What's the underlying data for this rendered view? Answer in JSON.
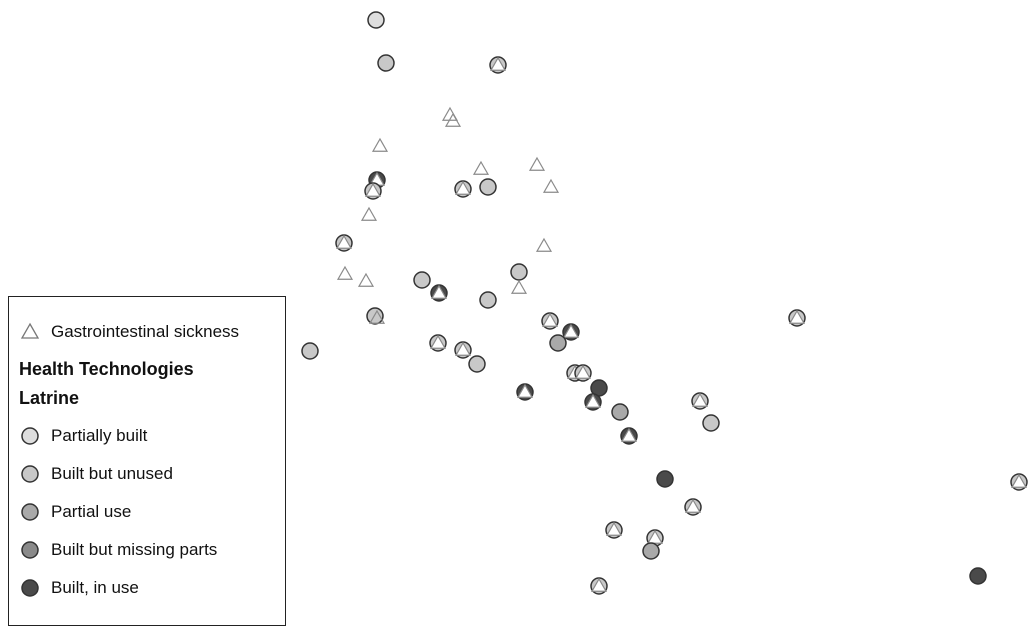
{
  "legend": {
    "sickness_label": "Gastrointestinal sickness",
    "heading_1": "Health Technologies",
    "heading_2": "Latrine",
    "categories": [
      {
        "key": "partially_built",
        "label": "Partially built",
        "fill": "#dedede"
      },
      {
        "key": "built_unused",
        "label": "Built but unused",
        "fill": "#c8c8c8"
      },
      {
        "key": "partial_use",
        "label": "Partial use",
        "fill": "#a9a9a9"
      },
      {
        "key": "missing_parts",
        "label": "Built but missing parts",
        "fill": "#8a8a8a"
      },
      {
        "key": "in_use",
        "label": "Built, in use",
        "fill": "#4a4a4a"
      }
    ],
    "triangle_color": "#8a8a8a"
  },
  "map_points": [
    {
      "latrine": "partially_built",
      "sickness": false
    },
    {
      "latrine": "built_unused",
      "sickness": false
    },
    {
      "latrine": "built_unused",
      "sickness": true
    },
    {
      "latrine": null,
      "sickness": true
    },
    {
      "latrine": null,
      "sickness": true
    },
    {
      "latrine": null,
      "sickness": true
    },
    {
      "latrine": "in_use",
      "sickness": true
    },
    {
      "latrine": "built_unused",
      "sickness": true
    },
    {
      "latrine": null,
      "sickness": true
    },
    {
      "latrine": "built_unused",
      "sickness": true
    },
    {
      "latrine": "built_unused",
      "sickness": false
    },
    {
      "latrine": null,
      "sickness": true
    },
    {
      "latrine": null,
      "sickness": true
    },
    {
      "latrine": null,
      "sickness": true
    },
    {
      "latrine": "built_unused",
      "sickness": true
    },
    {
      "latrine": null,
      "sickness": true
    },
    {
      "latrine": null,
      "sickness": true
    },
    {
      "latrine": null,
      "sickness": true
    },
    {
      "latrine": "built_unused",
      "sickness": false
    },
    {
      "latrine": "built_unused",
      "sickness": false
    },
    {
      "latrine": null,
      "sickness": true
    },
    {
      "latrine": "built_unused",
      "sickness": false
    },
    {
      "latrine": "in_use",
      "sickness": true
    },
    {
      "latrine": "built_unused",
      "sickness": false
    },
    {
      "latrine": null,
      "sickness": true
    },
    {
      "latrine": "built_unused",
      "sickness": true
    },
    {
      "latrine": "built_unused",
      "sickness": true
    },
    {
      "latrine": "in_use",
      "sickness": true
    },
    {
      "latrine": "partial_use",
      "sickness": false
    },
    {
      "latrine": "built_unused",
      "sickness": true
    },
    {
      "latrine": "built_unused",
      "sickness": false
    },
    {
      "latrine": "built_unused",
      "sickness": false
    },
    {
      "latrine": "built_unused",
      "sickness": true
    },
    {
      "latrine": "built_unused",
      "sickness": true
    },
    {
      "latrine": "in_use",
      "sickness": true
    },
    {
      "latrine": "in_use",
      "sickness": false
    },
    {
      "latrine": "in_use",
      "sickness": true
    },
    {
      "latrine": "partial_use",
      "sickness": false
    },
    {
      "latrine": "built_unused",
      "sickness": true
    },
    {
      "latrine": "built_unused",
      "sickness": false
    },
    {
      "latrine": "in_use",
      "sickness": true
    },
    {
      "latrine": "built_unused",
      "sickness": true
    },
    {
      "latrine": "in_use",
      "sickness": false
    },
    {
      "latrine": "built_unused",
      "sickness": true
    },
    {
      "latrine": "built_unused",
      "sickness": true
    },
    {
      "latrine": "built_unused",
      "sickness": true
    },
    {
      "latrine": "partial_use",
      "sickness": false
    },
    {
      "latrine": "built_unused",
      "sickness": true
    },
    {
      "latrine": "built_unused",
      "sickness": true
    },
    {
      "latrine": "in_use",
      "sickness": false
    }
  ]
}
